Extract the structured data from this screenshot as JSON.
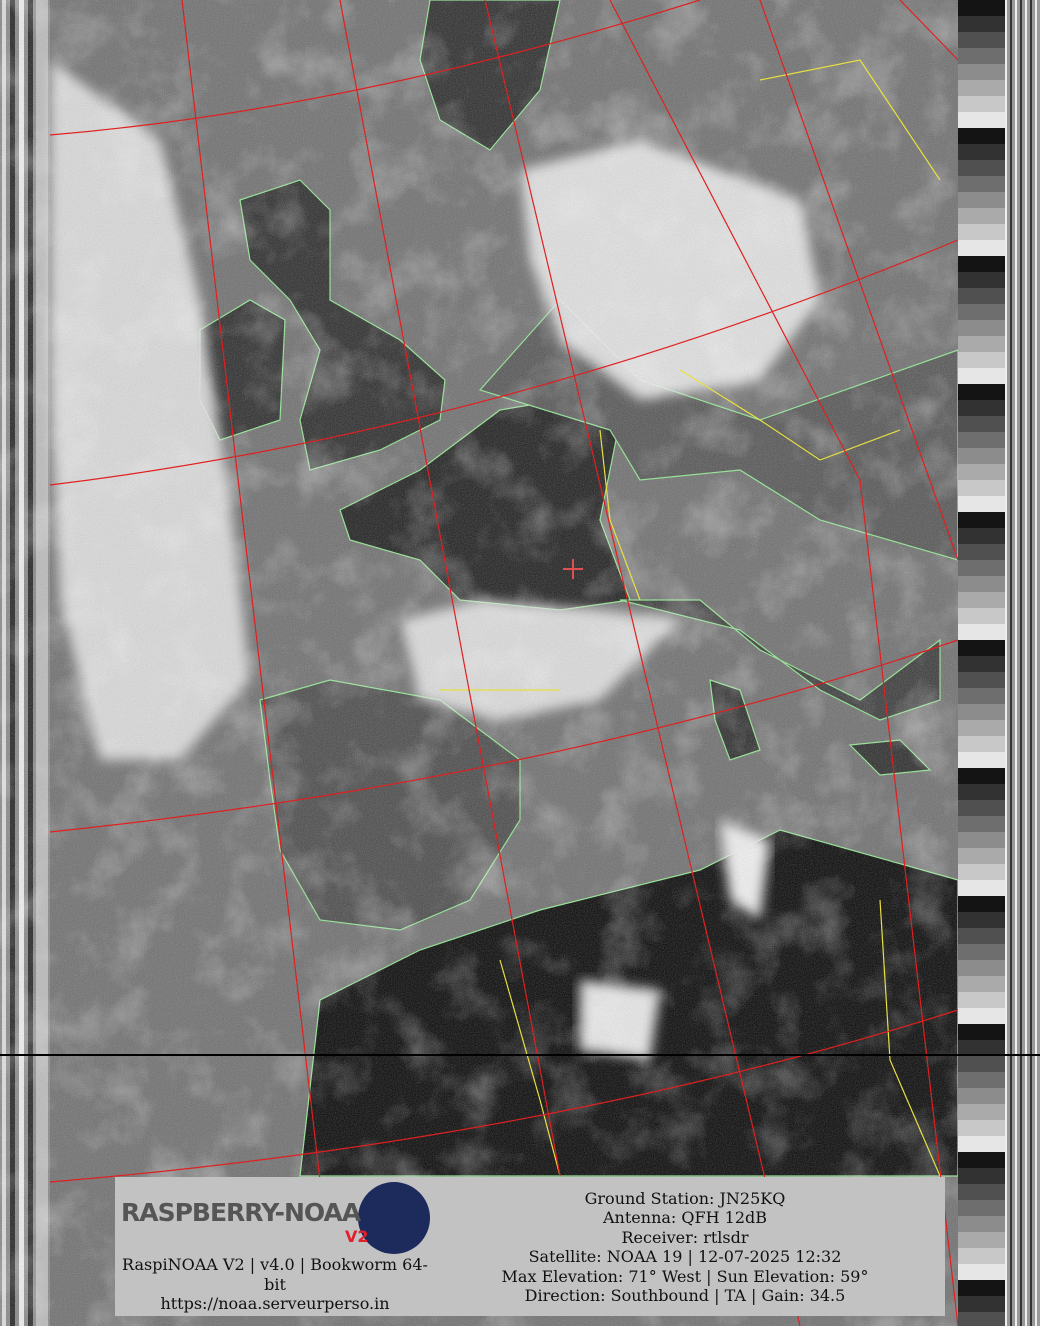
{
  "image": {
    "type": "NOAA APT satellite image with map overlay",
    "colors": {
      "graticule": "#e02020",
      "coastline": "#90e890",
      "borders": "#e8e040",
      "marker": "#e05050",
      "panel": "#c2c2c2"
    }
  },
  "logo": {
    "text": "RASPBERRY-NOAA",
    "badge": "V2"
  },
  "credits": {
    "line1": "RaspiNOAA V2 | v4.0 | Bookworm 64-bit",
    "line2": "https://noaa.serveurperso.in"
  },
  "pass_info": {
    "ground_station": "Ground Station: JN25KQ",
    "antenna": "Antenna: QFH 12dB",
    "receiver": "Receiver: rtlsdr",
    "satellite": "Satellite: NOAA 19 | 12-07-2025 12:32",
    "elevation": "Max Elevation: 71° West | Sun Elevation: 59°",
    "direction": "Direction: Southbound | TA | Gain: 34.5"
  }
}
